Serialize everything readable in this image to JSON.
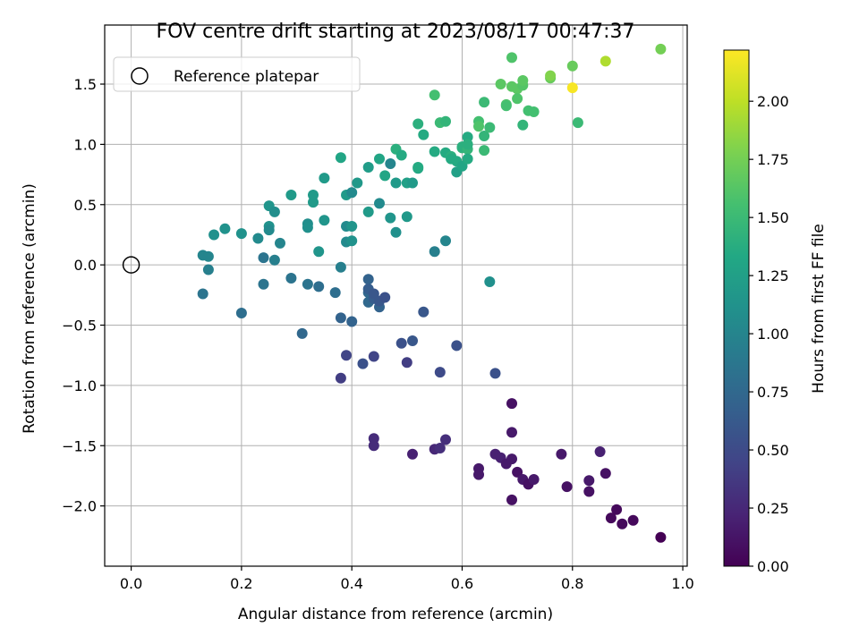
{
  "chart_data": {
    "type": "scatter",
    "title": "FOV centre drift starting at 2023/08/17 00:47:37",
    "xlabel": "Angular distance from reference (arcmin)",
    "ylabel": "Rotation from reference (arcmin)",
    "xlim": [
      -0.048,
      1.008
    ],
    "ylim": [
      -2.5,
      1.99
    ],
    "xticks": [
      0.0,
      0.2,
      0.4,
      0.6,
      0.8,
      1.0
    ],
    "xtick_labels": [
      "0.0",
      "0.2",
      "0.4",
      "0.6",
      "0.8",
      "1.0"
    ],
    "yticks": [
      -2.0,
      -1.5,
      -1.0,
      -0.5,
      0.0,
      0.5,
      1.0,
      1.5
    ],
    "ytick_labels": [
      "−2.0",
      "−1.5",
      "−1.0",
      "−0.5",
      "0.0",
      "0.5",
      "1.0",
      "1.5"
    ],
    "grid": true,
    "legend": {
      "location": "upper-left",
      "entries": [
        "Reference platepar"
      ]
    },
    "reference_point": {
      "x": 0.0,
      "y": 0.0,
      "marker": "open-circle",
      "label": "Reference platepar"
    },
    "colorbar": {
      "label": "Hours from first FF file",
      "colormap": "viridis",
      "range": [
        0.0,
        2.22
      ],
      "ticks": [
        0.0,
        0.25,
        0.5,
        0.75,
        1.0,
        1.25,
        1.5,
        1.75,
        2.0
      ],
      "tick_labels": [
        "0.00",
        "0.25",
        "0.50",
        "0.75",
        "1.00",
        "1.25",
        "1.50",
        "1.75",
        "2.00"
      ]
    },
    "points": [
      {
        "x": 0.13,
        "y": -0.24,
        "t": 0.85
      },
      {
        "x": 0.13,
        "y": 0.08,
        "t": 1.0
      },
      {
        "x": 0.14,
        "y": -0.04,
        "t": 0.95
      },
      {
        "x": 0.14,
        "y": 0.07,
        "t": 1.0
      },
      {
        "x": 0.15,
        "y": 0.25,
        "t": 1.1
      },
      {
        "x": 0.17,
        "y": 0.3,
        "t": 1.12
      },
      {
        "x": 0.2,
        "y": 0.26,
        "t": 1.12
      },
      {
        "x": 0.2,
        "y": -0.4,
        "t": 0.8
      },
      {
        "x": 0.23,
        "y": 0.22,
        "t": 1.05
      },
      {
        "x": 0.24,
        "y": 0.06,
        "t": 0.85
      },
      {
        "x": 0.24,
        "y": -0.16,
        "t": 0.85
      },
      {
        "x": 0.25,
        "y": 0.49,
        "t": 1.15
      },
      {
        "x": 0.25,
        "y": 0.32,
        "t": 1.12
      },
      {
        "x": 0.25,
        "y": 0.29,
        "t": 1.05
      },
      {
        "x": 0.26,
        "y": 0.04,
        "t": 0.95
      },
      {
        "x": 0.26,
        "y": 0.44,
        "t": 1.08
      },
      {
        "x": 0.27,
        "y": 0.18,
        "t": 1.0
      },
      {
        "x": 0.29,
        "y": -0.11,
        "t": 0.85
      },
      {
        "x": 0.29,
        "y": 0.58,
        "t": 1.2
      },
      {
        "x": 0.31,
        "y": -0.57,
        "t": 0.75
      },
      {
        "x": 0.32,
        "y": 0.34,
        "t": 1.08
      },
      {
        "x": 0.32,
        "y": 0.31,
        "t": 1.1
      },
      {
        "x": 0.32,
        "y": -0.16,
        "t": 0.85
      },
      {
        "x": 0.33,
        "y": 0.52,
        "t": 1.2
      },
      {
        "x": 0.33,
        "y": 0.58,
        "t": 1.2
      },
      {
        "x": 0.34,
        "y": 0.11,
        "t": 1.15
      },
      {
        "x": 0.34,
        "y": -0.18,
        "t": 0.8
      },
      {
        "x": 0.35,
        "y": 0.37,
        "t": 1.15
      },
      {
        "x": 0.35,
        "y": 0.72,
        "t": 1.2
      },
      {
        "x": 0.37,
        "y": -0.23,
        "t": 0.8
      },
      {
        "x": 0.38,
        "y": -0.44,
        "t": 0.7
      },
      {
        "x": 0.38,
        "y": -0.02,
        "t": 0.95
      },
      {
        "x": 0.38,
        "y": -0.94,
        "t": 0.4
      },
      {
        "x": 0.38,
        "y": 0.89,
        "t": 1.3
      },
      {
        "x": 0.39,
        "y": -0.75,
        "t": 0.45
      },
      {
        "x": 0.39,
        "y": 0.32,
        "t": 1.05
      },
      {
        "x": 0.39,
        "y": 0.19,
        "t": 1.05
      },
      {
        "x": 0.39,
        "y": 0.58,
        "t": 1.2
      },
      {
        "x": 0.4,
        "y": 0.2,
        "t": 1.12
      },
      {
        "x": 0.4,
        "y": -0.47,
        "t": 0.7
      },
      {
        "x": 0.4,
        "y": 0.6,
        "t": 1.05
      },
      {
        "x": 0.4,
        "y": 0.32,
        "t": 1.15
      },
      {
        "x": 0.41,
        "y": 0.68,
        "t": 1.18
      },
      {
        "x": 0.42,
        "y": -0.82,
        "t": 0.55
      },
      {
        "x": 0.43,
        "y": -0.23,
        "t": 0.75
      },
      {
        "x": 0.43,
        "y": -0.12,
        "t": 0.7
      },
      {
        "x": 0.43,
        "y": -0.31,
        "t": 0.75
      },
      {
        "x": 0.43,
        "y": -0.2,
        "t": 0.65
      },
      {
        "x": 0.43,
        "y": 0.44,
        "t": 1.2
      },
      {
        "x": 0.43,
        "y": 0.81,
        "t": 1.22
      },
      {
        "x": 0.44,
        "y": -0.76,
        "t": 0.45
      },
      {
        "x": 0.44,
        "y": -0.28,
        "t": 0.65
      },
      {
        "x": 0.44,
        "y": -1.44,
        "t": 0.28
      },
      {
        "x": 0.44,
        "y": -1.5,
        "t": 0.28
      },
      {
        "x": 0.44,
        "y": -0.24,
        "t": 0.6
      },
      {
        "x": 0.45,
        "y": -0.35,
        "t": 0.7
      },
      {
        "x": 0.45,
        "y": 0.88,
        "t": 1.3
      },
      {
        "x": 0.45,
        "y": 0.51,
        "t": 1.05
      },
      {
        "x": 0.45,
        "y": -0.3,
        "t": 0.6
      },
      {
        "x": 0.46,
        "y": -0.27,
        "t": 0.55
      },
      {
        "x": 0.46,
        "y": 0.74,
        "t": 1.3
      },
      {
        "x": 0.47,
        "y": 0.84,
        "t": 1.0
      },
      {
        "x": 0.47,
        "y": 0.39,
        "t": 1.15
      },
      {
        "x": 0.48,
        "y": 0.27,
        "t": 1.1
      },
      {
        "x": 0.48,
        "y": 0.96,
        "t": 1.4
      },
      {
        "x": 0.48,
        "y": 0.68,
        "t": 1.2
      },
      {
        "x": 0.49,
        "y": 0.91,
        "t": 1.35
      },
      {
        "x": 0.49,
        "y": -0.65,
        "t": 0.55
      },
      {
        "x": 0.5,
        "y": 0.68,
        "t": 1.25
      },
      {
        "x": 0.5,
        "y": -0.81,
        "t": 0.4
      },
      {
        "x": 0.5,
        "y": 0.4,
        "t": 1.18
      },
      {
        "x": 0.51,
        "y": 0.68,
        "t": 1.2
      },
      {
        "x": 0.51,
        "y": -1.57,
        "t": 0.2
      },
      {
        "x": 0.51,
        "y": -0.63,
        "t": 0.6
      },
      {
        "x": 0.52,
        "y": 1.17,
        "t": 1.4
      },
      {
        "x": 0.52,
        "y": 0.8,
        "t": 1.3
      },
      {
        "x": 0.52,
        "y": 0.81,
        "t": 1.35
      },
      {
        "x": 0.53,
        "y": 1.08,
        "t": 1.35
      },
      {
        "x": 0.53,
        "y": -0.39,
        "t": 0.6
      },
      {
        "x": 0.55,
        "y": 0.11,
        "t": 0.95
      },
      {
        "x": 0.55,
        "y": -1.53,
        "t": 0.25
      },
      {
        "x": 0.55,
        "y": 0.94,
        "t": 1.35
      },
      {
        "x": 0.55,
        "y": 1.41,
        "t": 1.55
      },
      {
        "x": 0.56,
        "y": -0.89,
        "t": 0.5
      },
      {
        "x": 0.56,
        "y": -1.52,
        "t": 0.3
      },
      {
        "x": 0.56,
        "y": 1.18,
        "t": 1.5
      },
      {
        "x": 0.57,
        "y": 0.93,
        "t": 1.35
      },
      {
        "x": 0.57,
        "y": 0.2,
        "t": 1.0
      },
      {
        "x": 0.57,
        "y": 1.19,
        "t": 1.45
      },
      {
        "x": 0.57,
        "y": -1.45,
        "t": 0.3
      },
      {
        "x": 0.58,
        "y": 0.9,
        "t": 1.4
      },
      {
        "x": 0.58,
        "y": 0.88,
        "t": 1.35
      },
      {
        "x": 0.59,
        "y": 0.86,
        "t": 1.35
      },
      {
        "x": 0.59,
        "y": -0.67,
        "t": 0.55
      },
      {
        "x": 0.59,
        "y": 0.77,
        "t": 1.25
      },
      {
        "x": 0.6,
        "y": 0.97,
        "t": 1.45
      },
      {
        "x": 0.6,
        "y": 0.82,
        "t": 1.3
      },
      {
        "x": 0.6,
        "y": 0.98,
        "t": 1.4
      },
      {
        "x": 0.61,
        "y": 0.96,
        "t": 1.45
      },
      {
        "x": 0.61,
        "y": 0.88,
        "t": 1.35
      },
      {
        "x": 0.61,
        "y": 1.06,
        "t": 1.35
      },
      {
        "x": 0.61,
        "y": 1.0,
        "t": 1.4
      },
      {
        "x": 0.63,
        "y": -1.69,
        "t": 0.15
      },
      {
        "x": 0.63,
        "y": -1.74,
        "t": 0.15
      },
      {
        "x": 0.63,
        "y": 1.19,
        "t": 1.55
      },
      {
        "x": 0.63,
        "y": 1.15,
        "t": 1.6
      },
      {
        "x": 0.64,
        "y": 1.07,
        "t": 1.45
      },
      {
        "x": 0.64,
        "y": 0.95,
        "t": 1.5
      },
      {
        "x": 0.64,
        "y": 1.35,
        "t": 1.5
      },
      {
        "x": 0.65,
        "y": -0.14,
        "t": 1.1
      },
      {
        "x": 0.65,
        "y": 1.14,
        "t": 1.5
      },
      {
        "x": 0.66,
        "y": -1.57,
        "t": 0.2
      },
      {
        "x": 0.66,
        "y": -0.9,
        "t": 0.55
      },
      {
        "x": 0.67,
        "y": 1.5,
        "t": 1.65
      },
      {
        "x": 0.67,
        "y": -1.6,
        "t": 0.2
      },
      {
        "x": 0.68,
        "y": -1.65,
        "t": 0.15
      },
      {
        "x": 0.68,
        "y": 1.33,
        "t": 1.6
      },
      {
        "x": 0.68,
        "y": 1.32,
        "t": 1.55
      },
      {
        "x": 0.69,
        "y": -1.61,
        "t": 0.15
      },
      {
        "x": 0.69,
        "y": 1.72,
        "t": 1.6
      },
      {
        "x": 0.69,
        "y": -1.95,
        "t": 0.1
      },
      {
        "x": 0.69,
        "y": 1.48,
        "t": 1.65
      },
      {
        "x": 0.69,
        "y": -1.39,
        "t": 0.15
      },
      {
        "x": 0.69,
        "y": -1.15,
        "t": 0.1
      },
      {
        "x": 0.7,
        "y": -1.72,
        "t": 0.1
      },
      {
        "x": 0.7,
        "y": 1.46,
        "t": 1.65
      },
      {
        "x": 0.7,
        "y": 1.38,
        "t": 1.6
      },
      {
        "x": 0.71,
        "y": -1.78,
        "t": 0.15
      },
      {
        "x": 0.71,
        "y": 1.49,
        "t": 1.62
      },
      {
        "x": 0.71,
        "y": 1.53,
        "t": 1.65
      },
      {
        "x": 0.71,
        "y": 1.16,
        "t": 1.45
      },
      {
        "x": 0.72,
        "y": 1.28,
        "t": 1.55
      },
      {
        "x": 0.72,
        "y": -1.82,
        "t": 0.1
      },
      {
        "x": 0.73,
        "y": 1.27,
        "t": 1.55
      },
      {
        "x": 0.73,
        "y": -1.78,
        "t": 0.15
      },
      {
        "x": 0.76,
        "y": 1.55,
        "t": 1.7
      },
      {
        "x": 0.76,
        "y": 1.57,
        "t": 1.8
      },
      {
        "x": 0.78,
        "y": -1.57,
        "t": 0.15
      },
      {
        "x": 0.79,
        "y": -1.84,
        "t": 0.1
      },
      {
        "x": 0.8,
        "y": 1.65,
        "t": 1.7
      },
      {
        "x": 0.8,
        "y": 1.47,
        "t": 2.2
      },
      {
        "x": 0.81,
        "y": 1.18,
        "t": 1.5
      },
      {
        "x": 0.83,
        "y": -1.79,
        "t": 0.15
      },
      {
        "x": 0.83,
        "y": -1.88,
        "t": 0.1
      },
      {
        "x": 0.85,
        "y": -1.55,
        "t": 0.2
      },
      {
        "x": 0.86,
        "y": 1.69,
        "t": 1.95
      },
      {
        "x": 0.86,
        "y": -1.73,
        "t": 0.1
      },
      {
        "x": 0.87,
        "y": -2.1,
        "t": 0.05
      },
      {
        "x": 0.88,
        "y": -2.03,
        "t": 0.05
      },
      {
        "x": 0.89,
        "y": -2.15,
        "t": 0.05
      },
      {
        "x": 0.91,
        "y": -2.12,
        "t": 0.05
      },
      {
        "x": 0.96,
        "y": -2.26,
        "t": 0.0
      },
      {
        "x": 0.96,
        "y": 1.79,
        "t": 1.75
      }
    ]
  }
}
